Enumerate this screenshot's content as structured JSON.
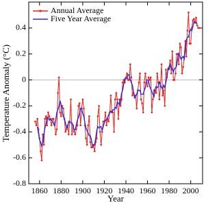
{
  "chart_data": {
    "type": "line",
    "x_label": "Year",
    "y_label": "Temperature Anomaly (°C)",
    "x": [
      1856,
      1857,
      1858,
      1859,
      1860,
      1861,
      1862,
      1863,
      1864,
      1865,
      1866,
      1867,
      1868,
      1869,
      1870,
      1871,
      1872,
      1873,
      1874,
      1875,
      1876,
      1877,
      1878,
      1879,
      1880,
      1881,
      1882,
      1883,
      1884,
      1885,
      1886,
      1887,
      1888,
      1889,
      1890,
      1891,
      1892,
      1893,
      1894,
      1895,
      1896,
      1897,
      1898,
      1899,
      1900,
      1901,
      1902,
      1903,
      1904,
      1905,
      1906,
      1907,
      1908,
      1909,
      1910,
      1911,
      1912,
      1913,
      1914,
      1915,
      1916,
      1917,
      1918,
      1919,
      1920,
      1921,
      1922,
      1923,
      1924,
      1925,
      1926,
      1927,
      1928,
      1929,
      1930,
      1931,
      1932,
      1933,
      1934,
      1935,
      1936,
      1937,
      1938,
      1939,
      1940,
      1941,
      1942,
      1943,
      1944,
      1945,
      1946,
      1947,
      1948,
      1949,
      1950,
      1951,
      1952,
      1953,
      1954,
      1955,
      1956,
      1957,
      1958,
      1959,
      1960,
      1961,
      1962,
      1963,
      1964,
      1965,
      1966,
      1967,
      1968,
      1969,
      1970,
      1971,
      1972,
      1973,
      1974,
      1975,
      1976,
      1977,
      1978,
      1979,
      1980,
      1981,
      1982,
      1983,
      1984,
      1985,
      1986,
      1987,
      1988,
      1989,
      1990,
      1991,
      1992,
      1993,
      1994,
      1995,
      1996,
      1997,
      1998,
      1999,
      2000,
      2001,
      2002,
      2003,
      2004,
      2005,
      2006,
      2007,
      2008
    ],
    "series": [
      {
        "name": "Annual Average",
        "color": "#e8231f",
        "markers": true,
        "values": [
          -0.32,
          -0.35,
          -0.3,
          -0.38,
          -0.45,
          -0.55,
          -0.62,
          -0.42,
          -0.5,
          -0.3,
          -0.28,
          -0.35,
          -0.25,
          -0.28,
          -0.3,
          -0.35,
          -0.3,
          -0.3,
          -0.35,
          -0.42,
          -0.38,
          -0.1,
          0.02,
          -0.25,
          -0.28,
          -0.2,
          -0.22,
          -0.3,
          -0.4,
          -0.38,
          -0.35,
          -0.42,
          -0.32,
          -0.15,
          -0.42,
          -0.35,
          -0.4,
          -0.42,
          -0.38,
          -0.35,
          -0.2,
          -0.18,
          -0.35,
          -0.22,
          -0.15,
          -0.22,
          -0.35,
          -0.45,
          -0.5,
          -0.35,
          -0.28,
          -0.48,
          -0.52,
          -0.52,
          -0.5,
          -0.55,
          -0.48,
          -0.45,
          -0.28,
          -0.2,
          -0.4,
          -0.5,
          -0.4,
          -0.32,
          -0.32,
          -0.25,
          -0.35,
          -0.3,
          -0.32,
          -0.25,
          -0.12,
          -0.25,
          -0.25,
          -0.4,
          -0.15,
          -0.1,
          -0.15,
          -0.3,
          -0.15,
          -0.2,
          -0.15,
          -0.02,
          0.0,
          -0.02,
          0.02,
          0.05,
          0.0,
          0.0,
          0.12,
          0.02,
          -0.12,
          -0.1,
          -0.12,
          -0.12,
          -0.22,
          -0.08,
          -0.02,
          0.05,
          -0.15,
          -0.18,
          -0.25,
          -0.02,
          0.05,
          -0.02,
          -0.05,
          0.02,
          0.0,
          0.02,
          -0.25,
          -0.15,
          -0.08,
          -0.08,
          -0.1,
          0.05,
          -0.02,
          -0.15,
          -0.05,
          0.12,
          -0.12,
          -0.08,
          -0.2,
          0.08,
          0.02,
          0.08,
          0.1,
          0.15,
          0.05,
          0.22,
          0.0,
          0.0,
          0.05,
          0.2,
          0.2,
          0.12,
          0.28,
          0.25,
          0.05,
          0.1,
          0.18,
          0.3,
          0.18,
          0.38,
          0.52,
          0.28,
          0.28,
          0.4,
          0.46,
          0.47,
          0.44,
          0.48,
          0.42,
          0.4,
          0.4
        ]
      },
      {
        "name": "Five Year Average",
        "color": "#2b2bd6",
        "markers": false,
        "values": [
          null,
          null,
          -0.36,
          -0.41,
          -0.46,
          -0.48,
          -0.51,
          -0.48,
          -0.42,
          -0.37,
          -0.34,
          -0.29,
          -0.29,
          -0.31,
          -0.3,
          -0.31,
          -0.32,
          -0.34,
          -0.35,
          -0.31,
          -0.25,
          -0.23,
          -0.2,
          -0.16,
          -0.19,
          -0.25,
          -0.28,
          -0.3,
          -0.33,
          -0.37,
          -0.37,
          -0.32,
          -0.33,
          -0.33,
          -0.33,
          -0.35,
          -0.39,
          -0.38,
          -0.35,
          -0.31,
          -0.29,
          -0.26,
          -0.22,
          -0.22,
          -0.26,
          -0.28,
          -0.33,
          -0.37,
          -0.39,
          -0.41,
          -0.43,
          -0.43,
          -0.46,
          -0.51,
          -0.51,
          -0.5,
          -0.45,
          -0.39,
          -0.36,
          -0.37,
          -0.36,
          -0.36,
          -0.39,
          -0.36,
          -0.33,
          -0.31,
          -0.31,
          -0.29,
          -0.27,
          -0.25,
          -0.24,
          -0.25,
          -0.23,
          -0.23,
          -0.21,
          -0.22,
          -0.17,
          -0.18,
          -0.19,
          -0.16,
          -0.1,
          -0.08,
          -0.03,
          0.01,
          0.01,
          0.01,
          0.04,
          0.04,
          0.0,
          -0.02,
          -0.04,
          -0.09,
          -0.14,
          -0.13,
          -0.11,
          -0.08,
          -0.08,
          -0.08,
          -0.11,
          -0.11,
          -0.11,
          -0.08,
          -0.06,
          0.0,
          0.0,
          -0.01,
          -0.05,
          -0.07,
          -0.09,
          -0.11,
          -0.13,
          -0.07,
          -0.05,
          -0.06,
          -0.05,
          -0.01,
          -0.04,
          -0.06,
          -0.07,
          -0.04,
          -0.06,
          -0.02,
          0.02,
          0.09,
          0.08,
          0.12,
          0.1,
          0.08,
          0.06,
          0.09,
          0.09,
          0.11,
          0.17,
          0.21,
          0.18,
          0.16,
          0.17,
          0.18,
          0.16,
          0.23,
          0.31,
          0.33,
          0.33,
          0.37,
          0.39,
          0.38,
          0.41,
          0.45,
          0.45,
          0.44,
          0.43,
          null,
          null
        ]
      }
    ],
    "xlim": [
      1850,
      2011
    ],
    "xticks": [
      1860,
      1880,
      1900,
      1920,
      1940,
      1960,
      1980,
      2000
    ],
    "ylim": [
      -0.8,
      0.6
    ],
    "yticks": [
      -0.8,
      -0.6,
      -0.4,
      -0.2,
      0,
      0.2,
      0.4
    ],
    "zero_line": true,
    "legend": "upper-left"
  }
}
